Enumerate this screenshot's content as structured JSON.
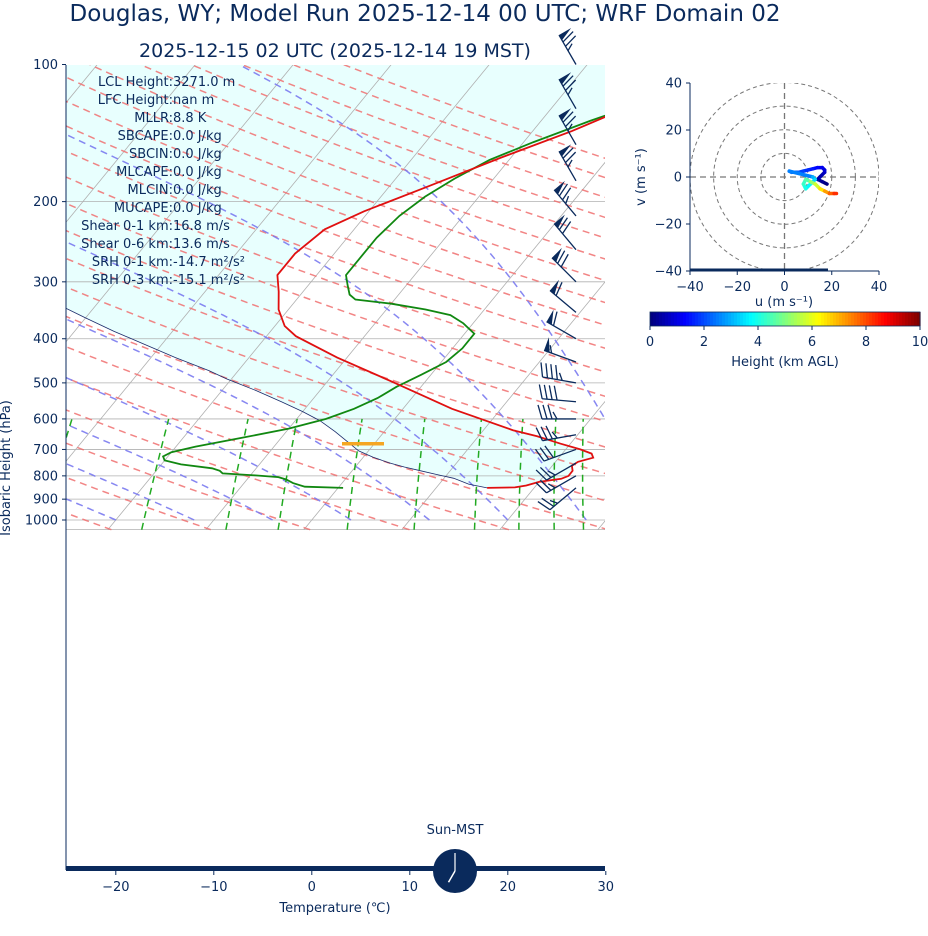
{
  "title": "Douglas, WY; Model Run 2025-12-14 00 UTC; WRF Domain 02",
  "subtitle": "2025-12-15 02 UTC  (2025-12-14 19 MST)",
  "colors": {
    "navy": "#0a2a5c",
    "temperature": "#e01010",
    "dewpoint": "#118811",
    "parcel": "#1a2a6a",
    "cape_fill": "#e8fffe",
    "isotherm": "#b0b0b0",
    "dry_adiabat": "#f07070",
    "moist_adiabat": "#7a7af0",
    "mixing_ratio": "#22aa22",
    "lcl_marker": "#f5a623"
  },
  "chart_data": [
    {
      "type": "line",
      "kind": "skew-t log-p",
      "xlabel": "Temperature (℃)",
      "ylabel": "Isobaric Height (hPa)",
      "xlim": [
        -25,
        30
      ],
      "ylim": [
        1050,
        100
      ],
      "log_y": true,
      "x_ticks": [
        -20,
        -10,
        0,
        10,
        20,
        30
      ],
      "y_ticks": [
        100,
        200,
        300,
        400,
        500,
        600,
        700,
        800,
        900,
        1000
      ],
      "grid": true,
      "indices": [
        "LCL Height: 3271.0 m",
        "LFC Height: nan m",
        "MLLR: 8.8 K",
        "SBCAPE: 0.0 J/kg",
        "SBCIN: 0.0 J/kg",
        "MLCAPE: 0.0 J/kg",
        "MLCIN: 0.0 J/kg",
        "MUCAPE: 0.0 J/kg",
        "Shear 0-1 km: 16.8 m/s",
        "Shear 0-6 km: 13.6 m/s",
        "SRH 0-1 km: -14.7 m²/s²",
        "SRH 0-3 km: -15.1 m²/s²"
      ],
      "lcl_pressure": 680,
      "series": [
        {
          "role": "temperature",
          "points": [
            [
              15.2,
              850
            ],
            [
              18,
              848
            ],
            [
              19,
              840
            ],
            [
              20,
              825
            ],
            [
              22,
              812
            ],
            [
              22.5,
              800
            ],
            [
              22.5,
              780
            ],
            [
              22,
              760
            ],
            [
              22.3,
              745
            ],
            [
              23.5,
              730
            ],
            [
              23,
              715
            ],
            [
              21.5,
              700
            ],
            [
              19,
              680
            ],
            [
              16,
              655
            ],
            [
              13,
              635
            ],
            [
              5,
              570
            ],
            [
              -3,
              500
            ],
            [
              -11,
              440
            ],
            [
              -17,
              395
            ],
            [
              -19,
              375
            ],
            [
              -21,
              345
            ],
            [
              -22.5,
              315
            ],
            [
              -24,
              290
            ],
            [
              -24,
              260
            ],
            [
              -23,
              230
            ],
            [
              -20.5,
              210
            ],
            [
              -16,
              185
            ],
            [
              -11,
              160
            ],
            [
              -6,
              140
            ],
            [
              -3,
              127
            ],
            [
              -0.3,
              113
            ],
            [
              2,
              100
            ]
          ]
        },
        {
          "role": "dewpoint",
          "points": [
            [
              0.5,
              850
            ],
            [
              -3.5,
              845
            ],
            [
              -5,
              830
            ],
            [
              -6,
              815
            ],
            [
              -7,
              805
            ],
            [
              -9.5,
              798
            ],
            [
              -13,
              790
            ],
            [
              -13.5,
              780
            ],
            [
              -14.5,
              770
            ],
            [
              -18,
              755
            ],
            [
              -20,
              740
            ],
            [
              -20.5,
              725
            ],
            [
              -20,
              710
            ],
            [
              -18,
              690
            ],
            [
              -14,
              660
            ],
            [
              -10,
              630
            ],
            [
              -7,
              600
            ],
            [
              -5,
              570
            ],
            [
              -3.5,
              540
            ],
            [
              -2.5,
              510
            ],
            [
              -1,
              480
            ],
            [
              0.5,
              450
            ],
            [
              1,
              420
            ],
            [
              1,
              390
            ],
            [
              -1,
              370
            ],
            [
              -3,
              355
            ],
            [
              -6,
              345
            ],
            [
              -10,
              335
            ],
            [
              -14,
              328
            ],
            [
              -15,
              320
            ],
            [
              -16,
              305
            ],
            [
              -17,
              290
            ],
            [
              -17,
              265
            ],
            [
              -17,
              240
            ],
            [
              -16.5,
              215
            ],
            [
              -15.5,
              195
            ],
            [
              -14,
              178
            ],
            [
              -12,
              162
            ],
            [
              -9,
              148
            ],
            [
              -5,
              133
            ],
            [
              1,
              115
            ],
            [
              4,
              100
            ]
          ]
        },
        {
          "role": "parcel",
          "points": [
            [
              15.2,
              850
            ],
            [
              13,
              834
            ],
            [
              11,
              810
            ],
            [
              9,
              795
            ],
            [
              7,
              780
            ],
            [
              5,
              765
            ],
            [
              3,
              748
            ],
            [
              1,
              728
            ],
            [
              -1,
              705
            ],
            [
              -2.5,
              680
            ],
            [
              -5,
              640
            ],
            [
              -7.5,
              605
            ],
            [
              -10,
              578
            ],
            [
              -13,
              550
            ],
            [
              -16.5,
              520
            ],
            [
              -20.5,
              490
            ],
            [
              -23,
              470
            ],
            [
              -27.5,
              440
            ],
            [
              -32,
              410
            ],
            [
              -36,
              385
            ],
            [
              -40,
              360
            ],
            [
              -45,
              330
            ],
            [
              -50,
              300
            ],
            [
              -58,
              270
            ],
            [
              -66,
              240
            ],
            [
              -75,
              210
            ],
            [
              -85,
              180
            ],
            [
              -95,
              150
            ],
            [
              -105,
              125
            ],
            [
              -115,
              100
            ]
          ]
        }
      ]
    },
    {
      "type": "line",
      "kind": "hodograph",
      "xlabel": "u (m s⁻¹)",
      "ylabel": "v (m s⁻¹)",
      "xlim": [
        -40,
        40
      ],
      "ylim": [
        -40,
        40
      ],
      "ticks": [
        -40,
        -20,
        0,
        20,
        40
      ],
      "rings": [
        10,
        20,
        30,
        40
      ],
      "colorbar": {
        "label": "Height (km AGL)",
        "min": 0,
        "max": 10,
        "ticks": [
          0,
          2,
          4,
          6,
          8,
          10
        ]
      },
      "points": [
        [
          18,
          -3,
          0
        ],
        [
          16,
          -2,
          0.2
        ],
        [
          14,
          -1,
          0.35
        ],
        [
          15,
          0,
          0.5
        ],
        [
          17,
          2,
          0.7
        ],
        [
          17,
          3,
          0.9
        ],
        [
          16,
          4,
          1.1
        ],
        [
          14,
          4,
          1.3
        ],
        [
          12,
          3.5,
          1.5
        ],
        [
          10,
          3,
          1.7
        ],
        [
          8,
          2.5,
          1.9
        ],
        [
          6,
          2,
          2.1
        ],
        [
          3,
          2,
          2.3
        ],
        [
          2,
          2.5,
          2.5
        ],
        [
          12,
          0,
          3
        ],
        [
          13,
          -1,
          3.4
        ],
        [
          11,
          -3,
          3.7
        ],
        [
          9,
          -5,
          4
        ],
        [
          8,
          -3,
          4.3
        ],
        [
          9,
          -1,
          4.6
        ],
        [
          11,
          -2,
          5.2
        ],
        [
          13,
          -3,
          5.8
        ],
        [
          15,
          -5,
          6.5
        ],
        [
          17,
          -6,
          7.2
        ],
        [
          19,
          -7,
          7.8
        ],
        [
          21,
          -7,
          8.3
        ],
        [
          22,
          -7,
          8.6
        ]
      ]
    }
  ],
  "wind_barbs": {
    "pressures": [
      100,
      125,
      150,
      180,
      215,
      255,
      300,
      350,
      400,
      450,
      500,
      550,
      600,
      650,
      700,
      750,
      800,
      850
    ],
    "speed_kt": [
      75,
      75,
      75,
      75,
      75,
      70,
      70,
      60,
      60,
      55,
      45,
      40,
      35,
      35,
      30,
      25,
      25,
      25
    ],
    "dir_deg": [
      330,
      330,
      330,
      330,
      320,
      320,
      315,
      310,
      300,
      290,
      280,
      275,
      270,
      260,
      250,
      240,
      240,
      230
    ]
  },
  "clock": {
    "label": "Sun-MST",
    "hour": 19,
    "minute": 0
  }
}
